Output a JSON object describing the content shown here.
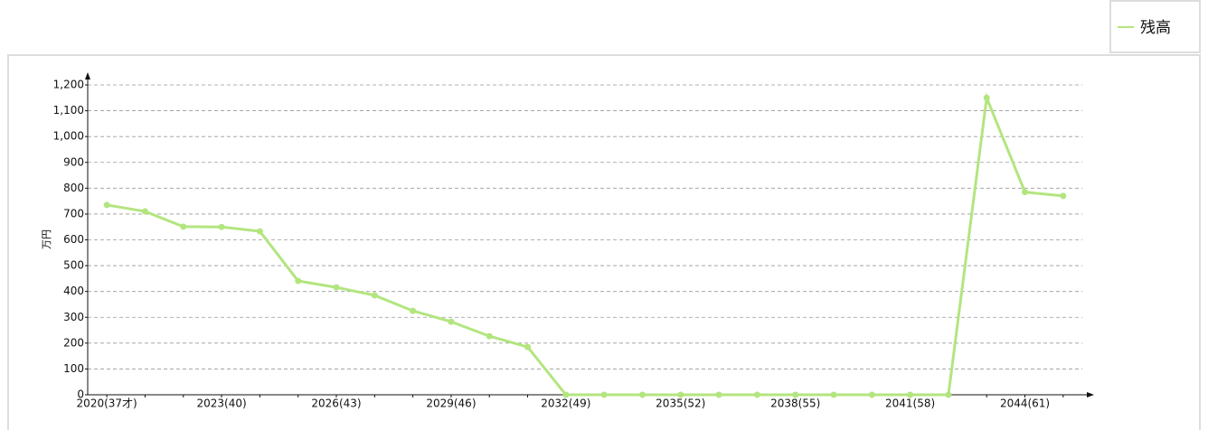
{
  "chart_data": {
    "type": "line",
    "y_label": "万円",
    "categories": [
      "2020(37才)",
      null,
      null,
      "2023(40)",
      null,
      null,
      "2026(43)",
      null,
      null,
      "2029(46)",
      null,
      null,
      "2032(49)",
      null,
      null,
      "2035(52)",
      null,
      null,
      "2038(55)",
      null,
      null,
      "2041(58)",
      null,
      null,
      "2044(61)",
      null
    ],
    "series": [
      {
        "name": "残高",
        "color": "#b3e57f",
        "values": [
          735,
          710,
          651,
          650,
          633,
          441,
          416,
          385,
          325,
          283,
          227,
          185,
          0,
          0,
          0,
          0,
          0,
          0,
          0,
          0,
          0,
          0,
          0,
          1150,
          785,
          770
        ]
      }
    ],
    "ylim": [
      0,
      1200
    ],
    "yticks": [
      0,
      100,
      200,
      300,
      400,
      500,
      600,
      700,
      800,
      900,
      {
        "value": 1000,
        "label": "1,000"
      },
      {
        "value": 1100,
        "label": "1,100"
      },
      {
        "value": 1200,
        "label": "1,200"
      }
    ],
    "grid": true,
    "legend": "top-right"
  }
}
